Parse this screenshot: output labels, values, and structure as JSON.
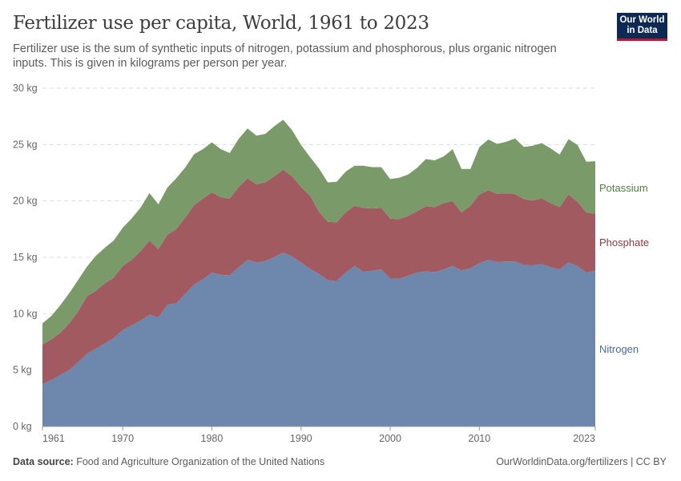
{
  "header": {
    "title": "Fertilizer use per capita, World, 1961 to 2023",
    "subtitle": "Fertilizer use is the sum of synthetic inputs of nitrogen, potassium and phosphorous, plus organic nitrogen inputs. This is given in kilograms per person per year.",
    "logo_text": "Our World in Data"
  },
  "footer": {
    "source_label": "Data source:",
    "source": "Food and Agriculture Organization of the United Nations",
    "link": "OurWorldinData.org/fertilizers | CC BY"
  },
  "chart_data": {
    "type": "area",
    "stacked": true,
    "title": "Fertilizer use per capita, World, 1961 to 2023",
    "xlabel": "",
    "ylabel": "",
    "ylim": [
      0,
      30
    ],
    "xlim": [
      1961,
      2023
    ],
    "grid": "horizontal dashed",
    "legend": "right, inline labels",
    "y_ticks": [
      {
        "v": 0,
        "label": "0 kg"
      },
      {
        "v": 5,
        "label": "5 kg"
      },
      {
        "v": 10,
        "label": "10 kg"
      },
      {
        "v": 15,
        "label": "15 kg"
      },
      {
        "v": 20,
        "label": "20 kg"
      },
      {
        "v": 25,
        "label": "25 kg"
      },
      {
        "v": 30,
        "label": "30 kg"
      }
    ],
    "x_ticks": [
      {
        "v": 1961,
        "label": "1961"
      },
      {
        "v": 1970,
        "label": "1970"
      },
      {
        "v": 1980,
        "label": "1980"
      },
      {
        "v": 1990,
        "label": "1990"
      },
      {
        "v": 2000,
        "label": "2000"
      },
      {
        "v": 2010,
        "label": "2010"
      },
      {
        "v": 2023,
        "label": "2023"
      }
    ],
    "x": [
      1961,
      1962,
      1963,
      1964,
      1965,
      1966,
      1967,
      1968,
      1969,
      1970,
      1971,
      1972,
      1973,
      1974,
      1975,
      1976,
      1977,
      1978,
      1979,
      1980,
      1981,
      1982,
      1983,
      1984,
      1985,
      1986,
      1987,
      1988,
      1989,
      1990,
      1991,
      1992,
      1993,
      1994,
      1995,
      1996,
      1997,
      1998,
      1999,
      2000,
      2001,
      2002,
      2003,
      2004,
      2005,
      2006,
      2007,
      2008,
      2009,
      2010,
      2011,
      2012,
      2013,
      2014,
      2015,
      2016,
      2017,
      2018,
      2019,
      2020,
      2021,
      2022,
      2023
    ],
    "series": [
      {
        "name": "Nitrogen",
        "color": "#6d87ad",
        "label_color": "#4a6a9c",
        "values": [
          3.75,
          4.12,
          4.57,
          5.0,
          5.7,
          6.45,
          6.9,
          7.37,
          7.84,
          8.55,
          8.96,
          9.38,
          9.93,
          9.67,
          10.8,
          10.92,
          11.75,
          12.58,
          13.05,
          13.65,
          13.45,
          13.4,
          14.1,
          14.78,
          14.55,
          14.66,
          15.02,
          15.42,
          15.07,
          14.55,
          14.0,
          13.53,
          12.98,
          12.89,
          13.65,
          14.24,
          13.72,
          13.81,
          13.93,
          13.12,
          13.1,
          13.36,
          13.65,
          13.76,
          13.69,
          13.93,
          14.24,
          13.84,
          14.05,
          14.48,
          14.78,
          14.59,
          14.64,
          14.64,
          14.31,
          14.29,
          14.41,
          14.12,
          13.93,
          14.55,
          14.24,
          13.65,
          13.81
        ]
      },
      {
        "name": "Phosphate",
        "color": "#a05a60",
        "label_color": "#8c3a42",
        "values": [
          3.54,
          3.6,
          3.74,
          4.14,
          4.5,
          5.11,
          5.13,
          5.33,
          5.36,
          5.69,
          5.82,
          6.16,
          6.56,
          6.06,
          6.2,
          6.58,
          6.75,
          7.04,
          7.16,
          7.11,
          6.88,
          6.81,
          7.13,
          7.21,
          6.92,
          7.0,
          7.16,
          7.35,
          7.11,
          6.68,
          6.47,
          5.52,
          5.17,
          5.21,
          5.33,
          5.33,
          5.66,
          5.52,
          5.45,
          5.31,
          5.28,
          5.31,
          5.44,
          5.76,
          5.76,
          5.87,
          5.75,
          5.14,
          5.52,
          6.09,
          6.16,
          6.04,
          6.04,
          5.99,
          5.85,
          5.75,
          5.82,
          5.68,
          5.52,
          6.02,
          5.68,
          5.33,
          5.05
        ]
      },
      {
        "name": "Potassium",
        "color": "#7a9b69",
        "label_color": "#4e7f3c",
        "values": [
          1.85,
          2.08,
          2.44,
          2.68,
          2.8,
          2.63,
          3.11,
          3.15,
          3.3,
          3.38,
          3.67,
          3.86,
          4.21,
          3.97,
          4.18,
          4.5,
          4.45,
          4.52,
          4.39,
          4.44,
          4.27,
          4.04,
          4.27,
          4.44,
          4.33,
          4.29,
          4.44,
          4.43,
          4.09,
          3.74,
          3.43,
          3.85,
          3.5,
          3.6,
          3.62,
          3.55,
          3.74,
          3.67,
          3.62,
          3.51,
          3.68,
          3.67,
          3.84,
          4.19,
          4.15,
          4.15,
          4.6,
          3.86,
          3.27,
          4.21,
          4.5,
          4.43,
          4.57,
          4.91,
          4.62,
          4.86,
          4.9,
          4.86,
          4.67,
          4.92,
          5.05,
          4.5,
          4.66
        ]
      }
    ]
  }
}
